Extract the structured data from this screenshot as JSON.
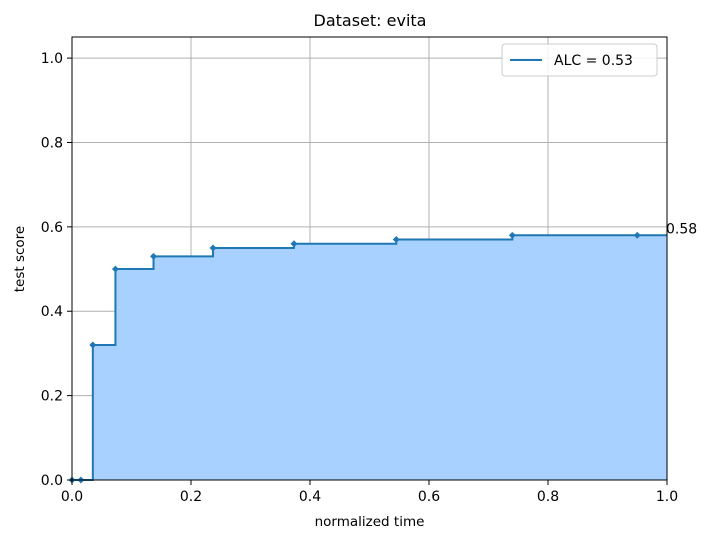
{
  "chart_data": {
    "type": "line",
    "step": "post",
    "title": "Dataset: evita",
    "xlabel": "normalized time",
    "ylabel": "test score",
    "xlim": [
      0.0,
      1.0
    ],
    "ylim": [
      0.0,
      1.05
    ],
    "x_ticks": [
      0.0,
      0.2,
      0.4,
      0.6,
      0.8,
      1.0
    ],
    "x_tick_labels": [
      "0.0",
      "0.2",
      "0.4",
      "0.6",
      "0.8",
      "1.0"
    ],
    "y_ticks": [
      0.0,
      0.2,
      0.4,
      0.6,
      0.8,
      1.0
    ],
    "y_tick_labels": [
      "0.0",
      "0.2",
      "0.4",
      "0.6",
      "0.8",
      "1.0"
    ],
    "grid": true,
    "legend": {
      "position": "top-right"
    },
    "series": [
      {
        "name": "ALC = 0.53",
        "color": "#1f77b4",
        "fill_color": "#a8d1ff",
        "x": [
          0.0,
          0.015,
          0.035,
          0.073,
          0.137,
          0.237,
          0.373,
          0.545,
          0.74,
          0.95
        ],
        "y": [
          0.0,
          0.0,
          0.32,
          0.5,
          0.53,
          0.55,
          0.56,
          0.57,
          0.58,
          0.58
        ]
      }
    ],
    "annotations": [
      {
        "text": "0.58",
        "x": 1.0,
        "y": 0.58
      }
    ]
  }
}
